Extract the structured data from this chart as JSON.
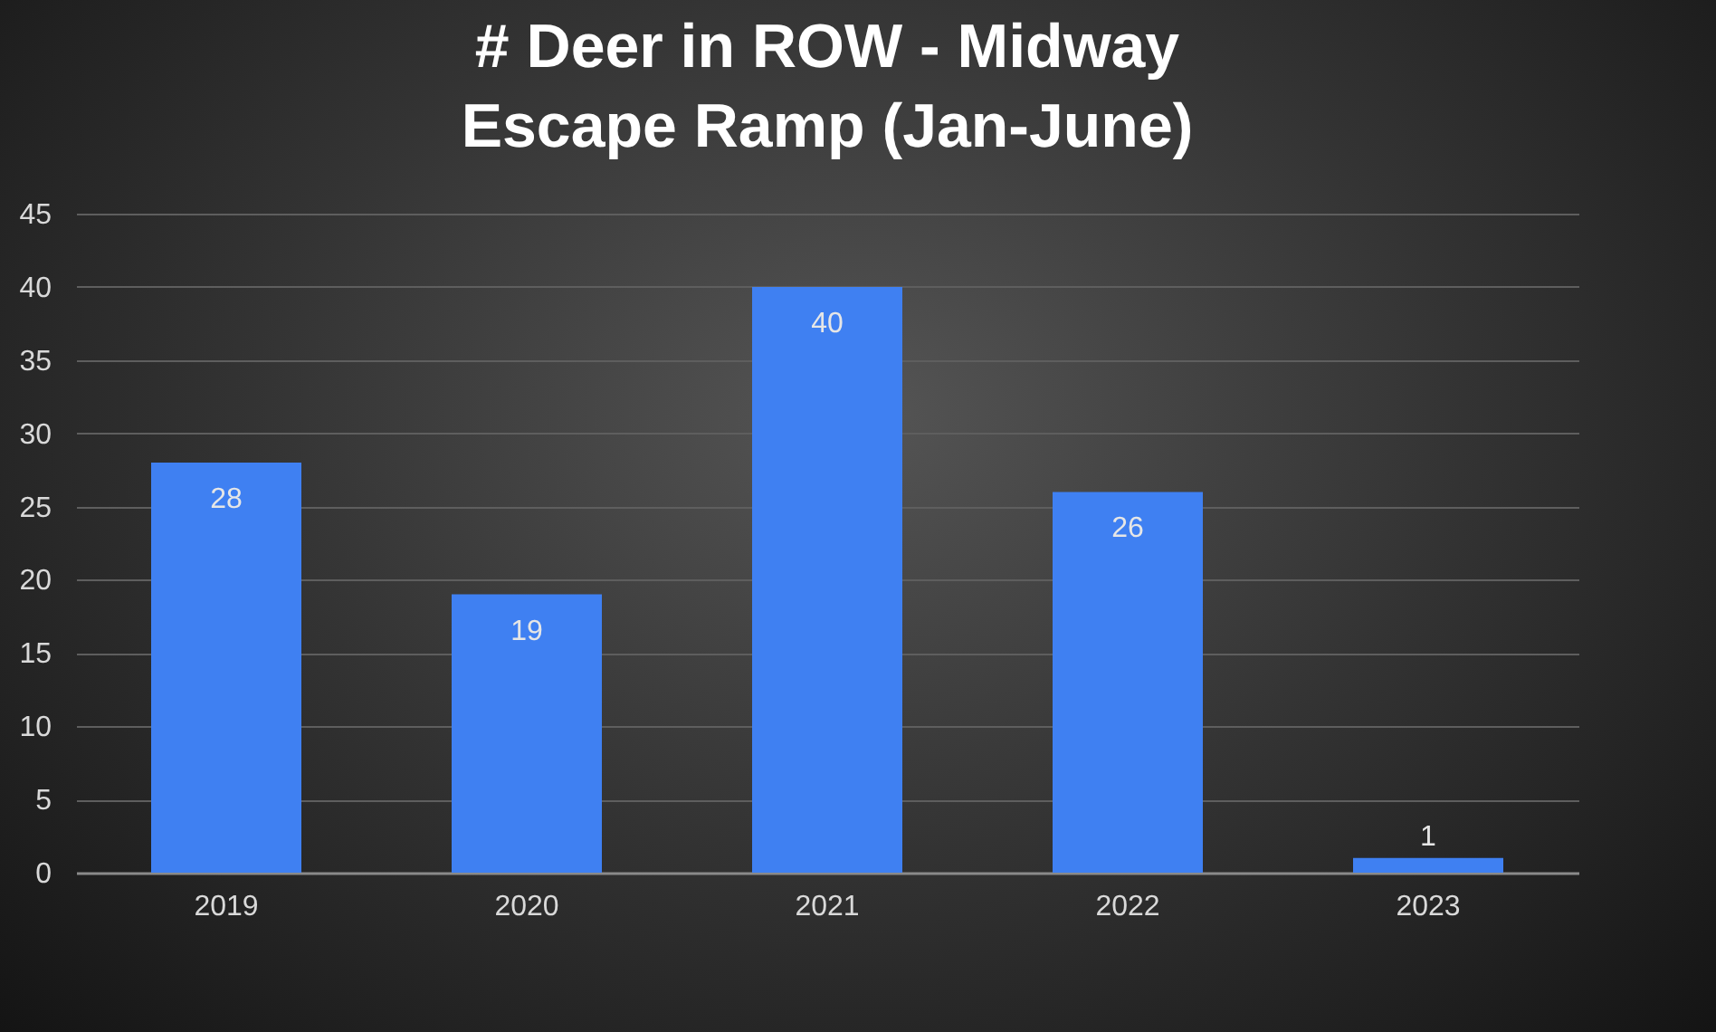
{
  "chart_data": {
    "type": "bar",
    "title": "# Deer in ROW - Midway Escape Ramp (Jan-June)",
    "categories": [
      "2019",
      "2020",
      "2021",
      "2022",
      "2023"
    ],
    "values": [
      28,
      19,
      40,
      26,
      1
    ],
    "color": "#3f80f2",
    "ylim": [
      0,
      45
    ],
    "yticks": [
      0,
      5,
      10,
      15,
      20,
      25,
      30,
      35,
      40,
      45
    ],
    "grid": "y",
    "data_labels": true
  }
}
